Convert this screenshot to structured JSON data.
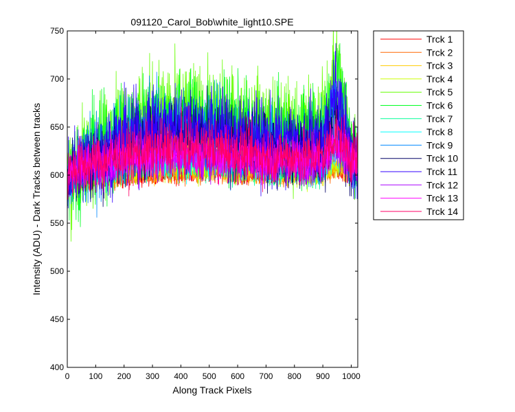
{
  "chart_data": {
    "type": "line",
    "title": "091120_Carol_Bob\\white_light10.SPE",
    "xlabel": "Along Track Pixels",
    "ylabel": "Intensity (ADU) - Dark Tracks between tracks",
    "xlim": [
      0,
      1023
    ],
    "ylim": [
      400,
      750
    ],
    "x_ticks": [
      0,
      100,
      200,
      300,
      400,
      500,
      600,
      700,
      800,
      900,
      1000
    ],
    "y_ticks": [
      400,
      450,
      500,
      550,
      600,
      650,
      700,
      750
    ],
    "grid": false,
    "legend_position": "outside-right",
    "x_range_points": 1024,
    "series": [
      {
        "name": "Trck 1",
        "color": "#ff0000",
        "x": [
          0,
          100,
          200,
          300,
          400,
          500,
          600,
          700,
          800,
          900,
          945,
          1000,
          1023
        ],
        "y": [
          596,
          595,
          597,
          599,
          601,
          601,
          600,
          600,
          600,
          601,
          606,
          604,
          604
        ]
      },
      {
        "name": "Trck 2",
        "color": "#ff6600",
        "x": [
          0,
          100,
          200,
          300,
          400,
          500,
          600,
          700,
          800,
          900,
          945,
          1000,
          1023
        ],
        "y": [
          595,
          594,
          598,
          601,
          602,
          603,
          601,
          600,
          600,
          601,
          607,
          603,
          603
        ]
      },
      {
        "name": "Trck 3",
        "color": "#ffcc00",
        "x": [
          0,
          100,
          200,
          300,
          400,
          500,
          600,
          700,
          800,
          900,
          945,
          1000,
          1023
        ],
        "y": [
          597,
          597,
          601,
          605,
          606,
          606,
          604,
          603,
          602,
          603,
          609,
          605,
          605
        ]
      },
      {
        "name": "Trck 4",
        "color": "#ccff00",
        "x": [
          0,
          100,
          200,
          300,
          400,
          500,
          600,
          700,
          800,
          900,
          945,
          1000,
          1023
        ],
        "y": [
          600,
          603,
          608,
          611,
          612,
          611,
          608,
          606,
          605,
          605,
          612,
          607,
          607
        ]
      },
      {
        "name": "Trck 5",
        "color": "#66ff00",
        "x": [
          0,
          100,
          200,
          300,
          400,
          500,
          600,
          700,
          800,
          900,
          945,
          1000,
          1023
        ],
        "y": [
          601,
          628,
          650,
          665,
          664,
          660,
          655,
          650,
          645,
          652,
          720,
          625,
          618
        ]
      },
      {
        "name": "Trck 6",
        "color": "#00ff22",
        "x": [
          0,
          100,
          200,
          300,
          400,
          500,
          600,
          700,
          800,
          900,
          945,
          1000,
          1023
        ],
        "y": [
          601,
          625,
          646,
          658,
          658,
          654,
          649,
          643,
          638,
          642,
          700,
          622,
          616
        ]
      },
      {
        "name": "Trck 7",
        "color": "#00ff99",
        "x": [
          0,
          100,
          200,
          300,
          400,
          500,
          600,
          700,
          800,
          900,
          945,
          1000,
          1023
        ],
        "y": [
          602,
          608,
          613,
          617,
          618,
          617,
          614,
          612,
          611,
          612,
          628,
          613,
          612
        ]
      },
      {
        "name": "Trck 8",
        "color": "#00ffff",
        "x": [
          0,
          100,
          200,
          300,
          400,
          500,
          600,
          700,
          800,
          900,
          945,
          1000,
          1023
        ],
        "y": [
          602,
          607,
          612,
          615,
          616,
          615,
          613,
          611,
          610,
          611,
          625,
          612,
          611
        ]
      },
      {
        "name": "Trck 9",
        "color": "#0088ff",
        "x": [
          0,
          100,
          200,
          300,
          400,
          500,
          600,
          700,
          800,
          900,
          945,
          1000,
          1023
        ],
        "y": [
          603,
          618,
          634,
          645,
          647,
          644,
          638,
          633,
          629,
          630,
          665,
          618,
          614
        ]
      },
      {
        "name": "Trck 10",
        "color": "#000066",
        "x": [
          0,
          100,
          200,
          300,
          400,
          500,
          600,
          700,
          800,
          900,
          945,
          1000,
          1023
        ],
        "y": [
          603,
          617,
          631,
          641,
          643,
          640,
          634,
          629,
          625,
          626,
          660,
          617,
          613
        ]
      },
      {
        "name": "Trck 11",
        "color": "#3300ff",
        "x": [
          0,
          100,
          200,
          300,
          400,
          500,
          600,
          700,
          800,
          900,
          945,
          1000,
          1023
        ],
        "y": [
          603,
          620,
          637,
          648,
          650,
          647,
          640,
          634,
          630,
          632,
          690,
          620,
          615
        ]
      },
      {
        "name": "Trck 12",
        "color": "#aa00ff",
        "x": [
          0,
          100,
          200,
          300,
          400,
          500,
          600,
          700,
          800,
          900,
          945,
          1000,
          1023
        ],
        "y": [
          603,
          609,
          614,
          618,
          619,
          618,
          616,
          614,
          613,
          614,
          630,
          615,
          614
        ]
      },
      {
        "name": "Trck 13",
        "color": "#ff00ff",
        "x": [
          0,
          100,
          200,
          300,
          400,
          500,
          600,
          700,
          800,
          900,
          945,
          1000,
          1023
        ],
        "y": [
          604,
          611,
          617,
          621,
          622,
          621,
          618,
          616,
          615,
          616,
          635,
          617,
          615
        ]
      },
      {
        "name": "Trck 14",
        "color": "#ff0066",
        "x": [
          0,
          100,
          200,
          300,
          400,
          500,
          600,
          700,
          800,
          900,
          945,
          1000,
          1023
        ],
        "y": [
          604,
          613,
          621,
          627,
          629,
          628,
          624,
          621,
          619,
          620,
          642,
          620,
          617
        ]
      }
    ]
  }
}
